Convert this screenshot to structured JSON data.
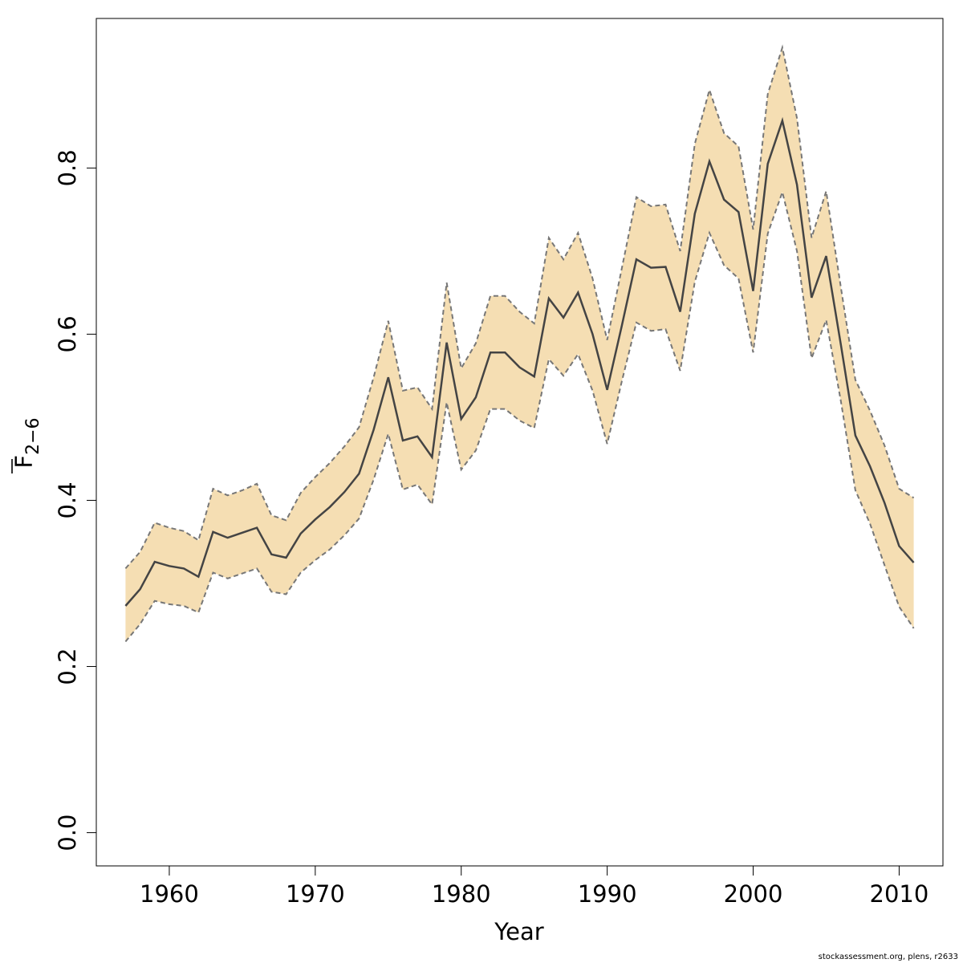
{
  "chart_data": {
    "type": "area",
    "xlabel": "Year",
    "ylabel_main": "F",
    "ylabel_sub": "2−6",
    "xlim": [
      1955,
      2013
    ],
    "ylim": [
      -0.04,
      0.98
    ],
    "xticks": [
      1960,
      1970,
      1980,
      1990,
      2000,
      2010
    ],
    "yticks": [
      0.0,
      0.2,
      0.4,
      0.6,
      0.8
    ],
    "ytick_labels": [
      "0.0",
      "0.2",
      "0.4",
      "0.6",
      "0.8"
    ],
    "band_color": "#f5deb3",
    "line_color": "#444444",
    "bound_color": "#777777",
    "x": [
      1957,
      1958,
      1959,
      1960,
      1961,
      1962,
      1963,
      1964,
      1965,
      1966,
      1967,
      1968,
      1969,
      1970,
      1971,
      1972,
      1973,
      1974,
      1975,
      1976,
      1977,
      1978,
      1979,
      1980,
      1981,
      1982,
      1983,
      1984,
      1985,
      1986,
      1987,
      1988,
      1989,
      1990,
      1991,
      1992,
      1993,
      1994,
      1995,
      1996,
      1997,
      1998,
      1999,
      2000,
      2001,
      2002,
      2003,
      2004,
      2005,
      2006,
      2007,
      2008,
      2009,
      2010,
      2011
    ],
    "series": [
      {
        "values": [
          0.273,
          0.293,
          0.326,
          0.321,
          0.318,
          0.308,
          0.362,
          0.355,
          0.361,
          0.367,
          0.335,
          0.331,
          0.36,
          0.377,
          0.392,
          0.41,
          0.432,
          0.485,
          0.548,
          0.472,
          0.477,
          0.452,
          0.59,
          0.498,
          0.524,
          0.578,
          0.578,
          0.56,
          0.549,
          0.643,
          0.62,
          0.65,
          0.6,
          0.533,
          0.61,
          0.69,
          0.68,
          0.681,
          0.627,
          0.745,
          0.808,
          0.762,
          0.747,
          0.652,
          0.805,
          0.857,
          0.78,
          0.644,
          0.694,
          0.588,
          0.478,
          0.441,
          0.397,
          0.345,
          0.325
        ]
      },
      {
        "values": [
          0.23,
          0.251,
          0.279,
          0.275,
          0.273,
          0.265,
          0.313,
          0.306,
          0.312,
          0.318,
          0.29,
          0.287,
          0.313,
          0.328,
          0.341,
          0.358,
          0.378,
          0.425,
          0.48,
          0.413,
          0.419,
          0.395,
          0.518,
          0.437,
          0.46,
          0.51,
          0.51,
          0.496,
          0.487,
          0.57,
          0.55,
          0.576,
          0.532,
          0.468,
          0.543,
          0.614,
          0.604,
          0.606,
          0.556,
          0.663,
          0.722,
          0.683,
          0.667,
          0.578,
          0.721,
          0.771,
          0.7,
          0.571,
          0.617,
          0.52,
          0.412,
          0.372,
          0.322,
          0.272,
          0.246
        ]
      },
      {
        "values": [
          0.318,
          0.338,
          0.373,
          0.367,
          0.363,
          0.352,
          0.414,
          0.406,
          0.412,
          0.42,
          0.382,
          0.376,
          0.409,
          0.428,
          0.445,
          0.465,
          0.488,
          0.548,
          0.616,
          0.532,
          0.536,
          0.51,
          0.662,
          0.559,
          0.589,
          0.646,
          0.646,
          0.627,
          0.613,
          0.716,
          0.69,
          0.722,
          0.667,
          0.593,
          0.679,
          0.765,
          0.754,
          0.756,
          0.7,
          0.829,
          0.894,
          0.842,
          0.826,
          0.726,
          0.889,
          0.945,
          0.86,
          0.716,
          0.772,
          0.657,
          0.545,
          0.508,
          0.466,
          0.414,
          0.403
        ]
      }
    ]
  },
  "footer": {
    "credit": "stockassessment.org, plens, r2633"
  }
}
